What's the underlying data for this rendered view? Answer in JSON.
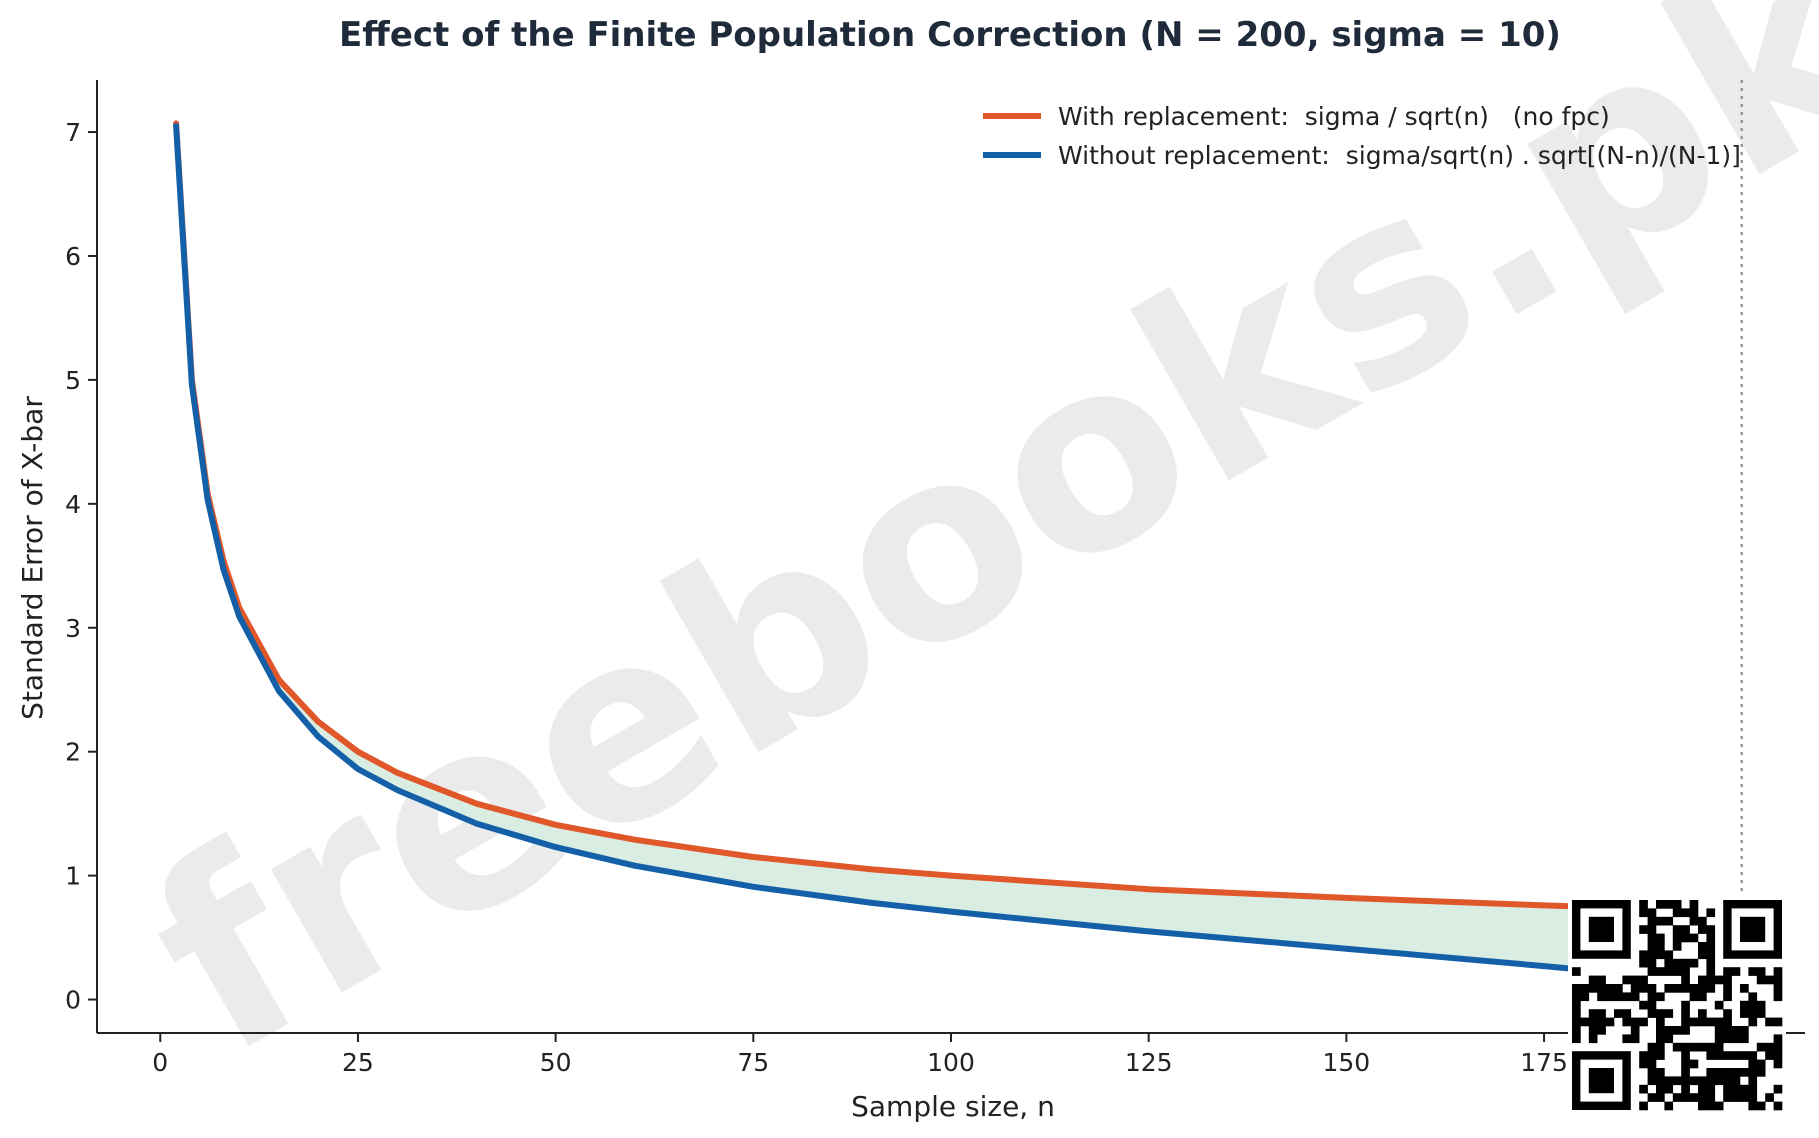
{
  "watermark": "freebooks.pk",
  "colors": {
    "with_replacement": "#e0572a",
    "without_replacement": "#1460a8",
    "fill": "#d9ede2",
    "population_line": "#999999",
    "axis": "#222222"
  },
  "chart_data": {
    "type": "line",
    "title": "Effect of the Finite Population Correction (N = 200, sigma = 10)",
    "xlabel": "Sample size, n",
    "ylabel": "Standard Error of X-bar",
    "xlim": [
      -8,
      208
    ],
    "ylim": [
      -0.27,
      7.42
    ],
    "xticks": [
      0,
      25,
      50,
      75,
      100,
      125,
      150,
      175
    ],
    "yticks": [
      0,
      1,
      2,
      3,
      4,
      5,
      6,
      7
    ],
    "grid": false,
    "legend_position": "top-right",
    "population_size_marker_x": 200,
    "shaded_between_series": true,
    "series": [
      {
        "name": "With replacement:  sigma / sqrt(n)   (no fpc)",
        "color": "#e0572a",
        "x": [
          2,
          4,
          6,
          8,
          10,
          15,
          20,
          25,
          30,
          40,
          50,
          60,
          75,
          90,
          100,
          125,
          150,
          175,
          180
        ],
        "y": [
          7.07,
          5.0,
          4.08,
          3.54,
          3.16,
          2.58,
          2.24,
          2.0,
          1.83,
          1.58,
          1.41,
          1.29,
          1.15,
          1.05,
          1.0,
          0.89,
          0.82,
          0.76,
          0.75
        ]
      },
      {
        "name": "Without replacement:  sigma/sqrt(n) . sqrt[(N-n)/(N-1)]",
        "color": "#1460a8",
        "x": [
          2,
          4,
          6,
          8,
          10,
          15,
          20,
          25,
          30,
          40,
          50,
          60,
          75,
          90,
          100,
          125,
          150,
          175,
          180
        ],
        "y": [
          7.05,
          4.96,
          4.03,
          3.47,
          3.09,
          2.49,
          2.12,
          1.86,
          1.69,
          1.42,
          1.23,
          1.08,
          0.91,
          0.78,
          0.71,
          0.55,
          0.41,
          0.27,
          0.24
        ]
      }
    ]
  }
}
